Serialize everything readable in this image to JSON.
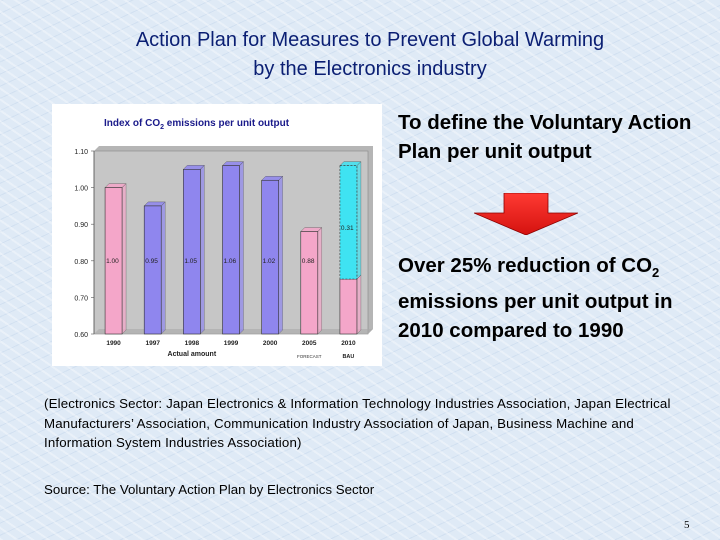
{
  "title": {
    "line1": "Action Plan for Measures to Prevent Global Warming",
    "line2": "by the Electronics industry"
  },
  "bullets": {
    "first": "To define the Voluntary Action Plan per unit output",
    "second_before_sub": "Over 25%  reduction of CO",
    "second_sub": "2",
    "second_after_sub": " emissions per unit output in 2010 compared to 1990"
  },
  "sector_note": "(Electronics Sector: Japan Electronics & Information Technology Industries Association, Japan Electrical Manufacturers’ Association, Communication  Industry Association of Japan, Business Machine and Information System Industries Association)",
  "source": "Source: The Voluntary Action Plan by Electronics Sector",
  "page_number": "5",
  "colors": {
    "title": "#0b1f73",
    "actual_bar": "#8f86ee",
    "forecast_bar": "#f4a6c9",
    "bau_bar": "#3fe3f2",
    "arrow_fill": "#f0211e",
    "plot_bg": "#c6c6c6"
  },
  "chart_data": {
    "type": "bar",
    "title_before_sub": "Index of CO",
    "title_sub": "2",
    "title_after_sub": " emissions per unit output",
    "ylim": [
      0.6,
      1.1
    ],
    "yticks": [
      "1.10",
      "1.00",
      "0.90",
      "0.80",
      "0.70",
      "0.60"
    ],
    "categories": [
      "1990",
      "1997",
      "1998",
      "1999",
      "2000",
      "2005",
      "2010"
    ],
    "values": [
      1.0,
      0.95,
      1.05,
      1.06,
      1.02,
      0.88,
      0.75
    ],
    "value_labels": [
      "1.00",
      "0.95",
      "1.05",
      "1.06",
      "1.02",
      "0.88",
      "0.75"
    ],
    "bar_kinds": [
      "base",
      "actual",
      "actual",
      "actual",
      "actual",
      "forecast",
      "forecast"
    ],
    "stack_on_last": {
      "value": 0.31,
      "label": "0.31"
    },
    "group_labels": {
      "actual": "Actual amount",
      "forecast": "FORECAST",
      "bau": "BAU"
    }
  }
}
